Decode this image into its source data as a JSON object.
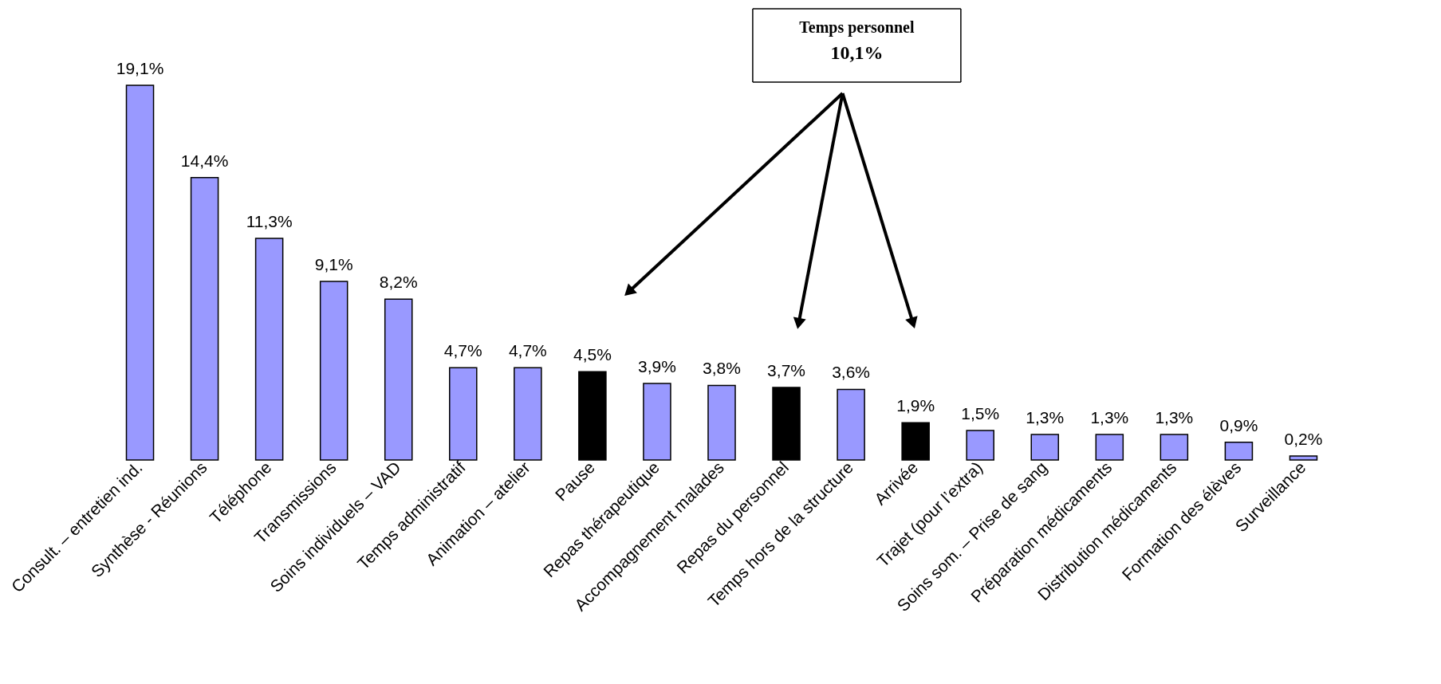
{
  "chart_data": {
    "type": "bar",
    "categories": [
      "Consult. – entretien ind.",
      "Synthèse  - Réunions",
      "Téléphone",
      "Transmissions",
      "Soins individuels – VAD",
      "Temps administratif",
      "Animation – atelier",
      "Pause",
      "Repas thérapeutique",
      "Accompagnement malades",
      "Repas du personnel",
      "Temps hors de la structure",
      "Arrivée",
      "Trajet (pour l’extra)",
      "Soins som. – Prise de sang",
      "Préparation médicaments",
      "Distribution médicaments",
      "Formation des élèves",
      "Surveillance"
    ],
    "values": [
      19.1,
      14.4,
      11.3,
      9.1,
      8.2,
      4.7,
      4.7,
      4.5,
      3.9,
      3.8,
      3.7,
      3.6,
      1.9,
      1.5,
      1.3,
      1.3,
      1.3,
      0.9,
      0.2
    ],
    "colors": [
      "#9999ff",
      "#9999ff",
      "#9999ff",
      "#9999ff",
      "#9999ff",
      "#9999ff",
      "#9999ff",
      "#000000",
      "#9999ff",
      "#9999ff",
      "#000000",
      "#9999ff",
      "#000000",
      "#9999ff",
      "#9999ff",
      "#9999ff",
      "#9999ff",
      "#9999ff",
      "#9999ff"
    ],
    "value_labels": [
      "19,1%",
      "14,4%",
      "11,3%",
      "9,1%",
      "8,2%",
      "4,7%",
      "4,7%",
      "4,5%",
      "3,9%",
      "3,8%",
      "3,7%",
      "3,6%",
      "1,9%",
      "1,5%",
      "1,3%",
      "1,3%",
      "1,3%",
      "0,9%",
      "0,2%"
    ],
    "annotations": [
      "Temps personnel",
      "10,1%"
    ]
  }
}
